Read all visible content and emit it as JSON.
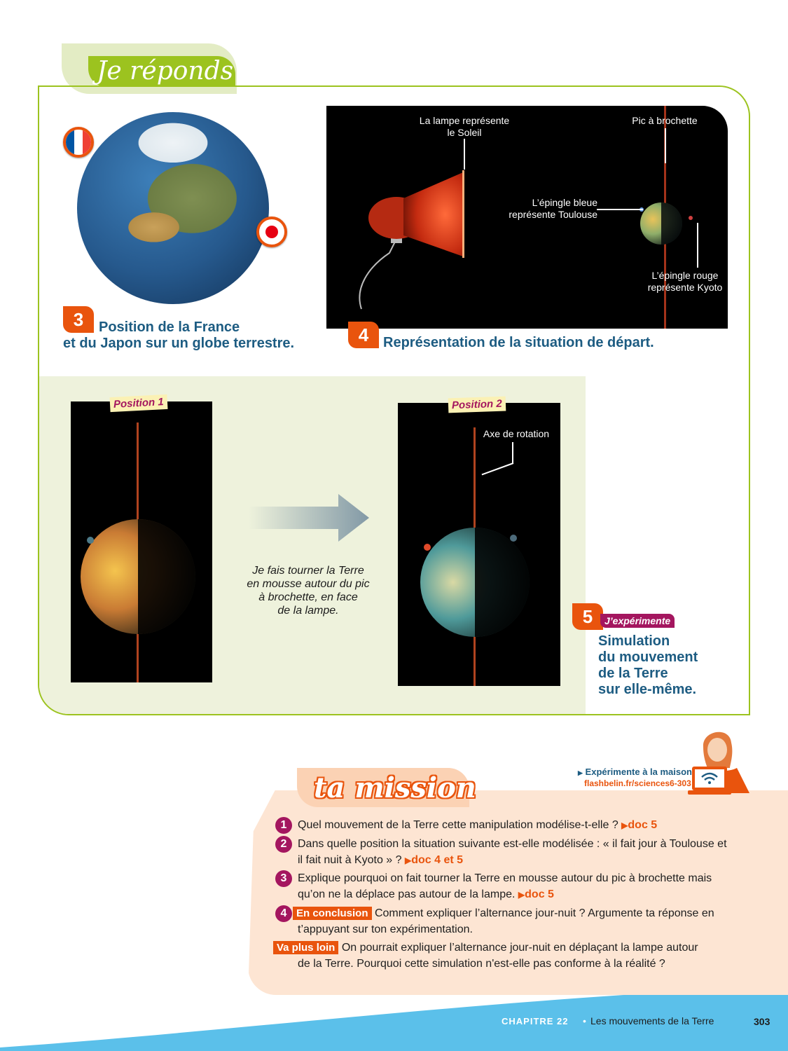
{
  "header": {
    "title": "Je réponds"
  },
  "doc3": {
    "number": "3",
    "caption_line1": "Position de la France",
    "caption_line2": "et du Japon sur un globe terrestre."
  },
  "doc4": {
    "number": "4",
    "label_lamp_line1": "La lampe représente",
    "label_lamp_line2": "le Soleil",
    "label_skewer": "Pic à brochette",
    "label_blue_pin_line1": "L’épingle bleue",
    "label_blue_pin_line2": "représente Toulouse",
    "label_red_pin_line1": "L’épingle rouge",
    "label_red_pin_line2": "représente Kyoto",
    "caption": "Représentation de la situation de départ."
  },
  "doc5": {
    "position1": "Position 1",
    "position2": "Position 2",
    "axis_label": "Axe de rotation",
    "sim_text_l1": "Je fais tourner la Terre",
    "sim_text_l2": "en mousse autour du pic",
    "sim_text_l3": "à brochette, en face",
    "sim_text_l4": "de la lampe.",
    "number": "5",
    "tag": "J’expérimente",
    "caption_l1": "Simulation",
    "caption_l2": "du mouvement",
    "caption_l3": "de la Terre",
    "caption_l4": "sur elle-même."
  },
  "mission": {
    "title": "ta mission",
    "experiment_label": "Expérimente à la maison",
    "experiment_url": "flashbelin.fr/sciences6-303",
    "q1": {
      "number": "1",
      "text": "Quel mouvement de la Terre cette manipulation modélise-t-elle ?",
      "ref": "doc 5"
    },
    "q2": {
      "number": "2",
      "text_l1": "Dans quelle position la situation suivante est-elle modélisée : « il fait jour à Toulouse et",
      "text_l2": "il fait nuit à Kyoto » ?",
      "ref": "doc 4 et 5"
    },
    "q3": {
      "number": "3",
      "text_l1": "Explique pourquoi on fait tourner la Terre en mousse autour du pic à brochette mais",
      "text_l2": "qu’on ne la déplace pas autour de la lampe.",
      "ref": "doc 5"
    },
    "q4": {
      "number": "4",
      "tag": "En conclusion",
      "text_l1": "Comment expliquer l’alternance jour-nuit ? Argumente ta réponse en",
      "text_l2": "t’appuyant sur ton expérimentation."
    },
    "q5": {
      "tag": "Va plus loin",
      "text_l1": "On pourrait expliquer l’alternance jour-nuit en déplaçant la lampe autour",
      "text_l2": "de la Terre. Pourquoi cette simulation n'est-elle pas conforme à la réalité ?"
    }
  },
  "footer": {
    "chapter": "CHAPITRE 22",
    "separator": "•",
    "title": "Les mouvements de la Terre",
    "page": "303"
  },
  "colors": {
    "green": "#9cc31f",
    "orange": "#e9540d",
    "purple": "#a4165f",
    "blue_text": "#1d5c82",
    "sky": "#5bc0ea",
    "mission_bg": "#fde5d3"
  },
  "icons": [
    "french-flag-pin-icon",
    "japanese-flag-pin-icon",
    "arrow-right-icon",
    "laptop-wifi-icon",
    "triangle-bullet-icon"
  ]
}
